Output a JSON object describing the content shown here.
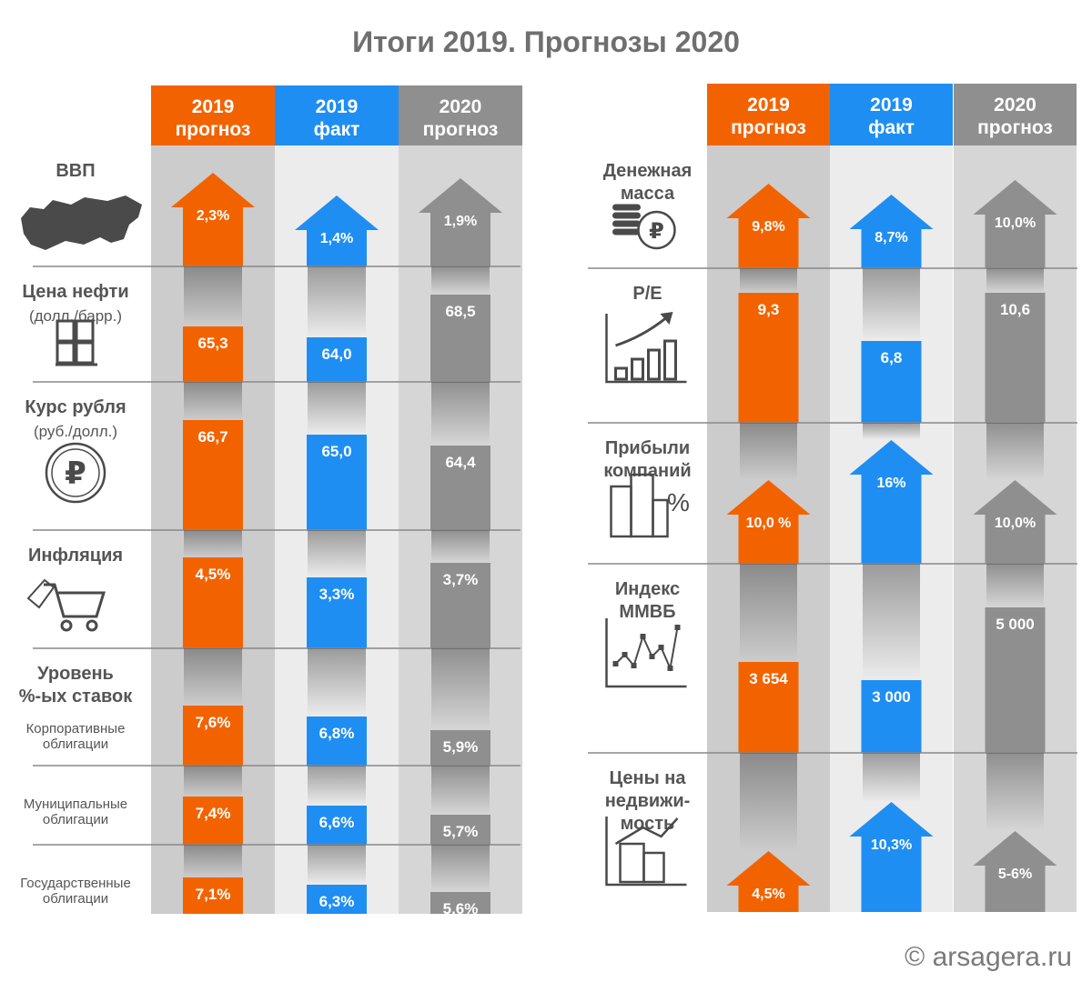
{
  "title": "Итоги 2019. Прогнозы 2020",
  "footer": "arsagera.ru",
  "colors": {
    "forecast2019": "#f26300",
    "fact2019": "#1f8ef2",
    "forecast2020": "#8f8f8f"
  },
  "chart_data": [
    {
      "type": "bar",
      "columns": [
        {
          "line1": "2019",
          "line2": "прогноз"
        },
        {
          "line1": "2019",
          "line2": "факт"
        },
        {
          "line1": "2020",
          "line2": "прогноз"
        }
      ],
      "rows": [
        {
          "name": "ВВП",
          "icon": "russia-map-icon",
          "values": [
            "2,3%",
            "1,4%",
            "1,9%"
          ],
          "arrows": true
        },
        {
          "name": "Цена нефти",
          "unit": "(долл./барр.)",
          "icon": "oil-barrels-icon",
          "values": [
            "65,3",
            "64,0",
            "68,5"
          ]
        },
        {
          "name": "Курс рубля",
          "unit": "(руб./долл.)",
          "icon": "ruble-coin-icon",
          "values": [
            "66,7",
            "65,0",
            "64,4"
          ]
        },
        {
          "name": "Инфляция",
          "icon": "shopping-cart-icon",
          "values": [
            "4,5%",
            "3,3%",
            "3,7%"
          ]
        },
        {
          "name": "Уровень %-ых ставок",
          "lines": [
            "Уровень",
            "%-ых ставок"
          ],
          "sub": [
            "Корпоративные",
            "облигации"
          ],
          "values": [
            "7,6%",
            "6,8%",
            "5,9%"
          ]
        },
        {
          "sub": [
            "Муниципальные",
            "облигации"
          ],
          "values": [
            "7,4%",
            "6,6%",
            "5,7%"
          ]
        },
        {
          "sub": [
            "Государственные",
            "облигации"
          ],
          "values": [
            "7,1%",
            "6,3%",
            "5,6%"
          ]
        }
      ]
    },
    {
      "type": "bar",
      "columns": [
        {
          "line1": "2019",
          "line2": "прогноз"
        },
        {
          "line1": "2019",
          "line2": "факт"
        },
        {
          "line1": "2020",
          "line2": "прогноз"
        }
      ],
      "rows": [
        {
          "lines": [
            "Денежная",
            "масса"
          ],
          "icon": "coins-ruble-icon",
          "values": [
            "9,8%",
            "8,7%",
            "10,0%"
          ],
          "arrows": true
        },
        {
          "lines": [
            "P/E"
          ],
          "icon": "growth-chart-icon",
          "values": [
            "9,3",
            "6,8",
            "10,6"
          ]
        },
        {
          "lines": [
            "Прибыли",
            "компаний"
          ],
          "icon": "buildings-percent-icon",
          "values": [
            "10,0 %",
            "16%",
            "10,0%"
          ],
          "arrows": true
        },
        {
          "lines": [
            "Индекс",
            "ММВБ"
          ],
          "icon": "line-chart-icon",
          "values": [
            "3 654",
            "3 000",
            "5 000"
          ]
        },
        {
          "lines": [
            "Цены на",
            "недвижи-",
            "мость"
          ],
          "icon": "real-estate-icon",
          "values": [
            "4,5%",
            "10,3%",
            "5-6%"
          ],
          "arrows": true
        }
      ]
    }
  ]
}
